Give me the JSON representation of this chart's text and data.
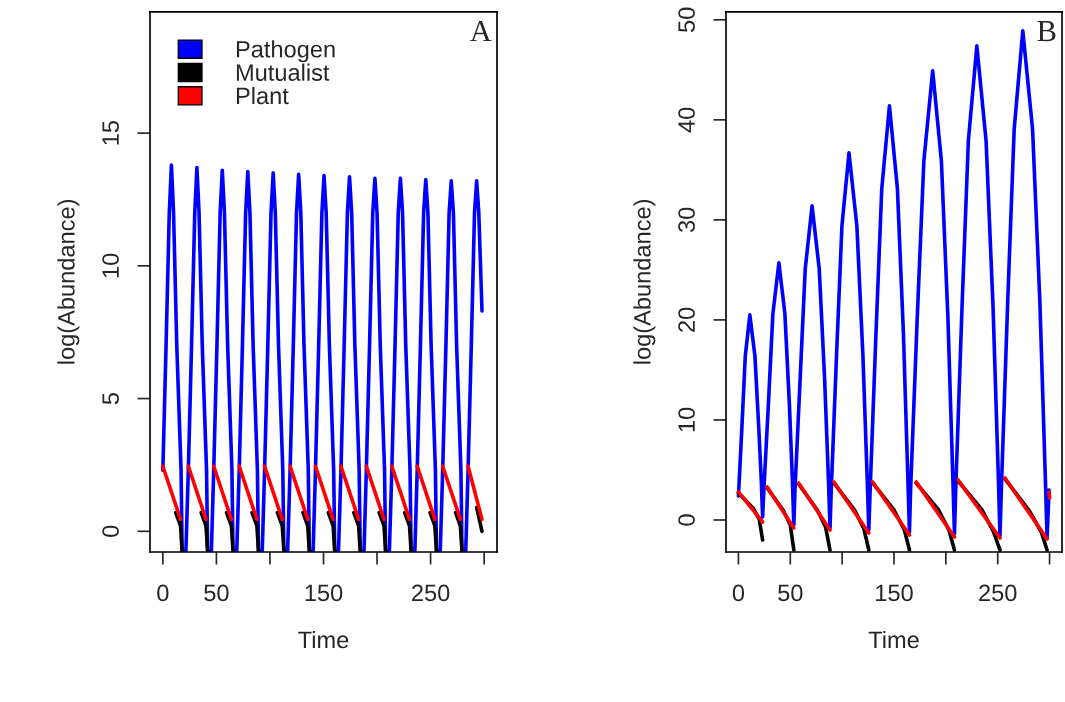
{
  "chart_data": [
    {
      "type": "line",
      "xlabel": "Time",
      "ylabel": "log(Abundance)",
      "annotations": [
        "A"
      ],
      "legend": "top left",
      "xlim": [
        -12,
        312
      ],
      "ylim": [
        -0.78,
        19.57
      ],
      "xticks": [
        0,
        50,
        {
          "value": 100,
          "label": null
        },
        150,
        {
          "value": 200,
          "label": null
        },
        250,
        {
          "value": 300,
          "label": null
        }
      ],
      "yticks": [
        0,
        5,
        10,
        15
      ],
      "series": [
        {
          "name": "Pathogen",
          "color": "#0000ff",
          "x": [
            0,
            3,
            6,
            8,
            10,
            13,
            17,
            18,
            21.5,
            23.8,
            26.8,
            29.8,
            31.8,
            33.8,
            36.8,
            40.8,
            41.8,
            45.3,
            47.5,
            50.5,
            53.5,
            55.5,
            57.5,
            60.5,
            64.5,
            65.5,
            69,
            71.3,
            74.3,
            77.3,
            79.3,
            81.3,
            84.3,
            88.3,
            89.3,
            92.8,
            95,
            98,
            101,
            103,
            105,
            108,
            112,
            113,
            116.5,
            118.8,
            121.8,
            124.8,
            126.8,
            128.8,
            131.8,
            135.8,
            136.8,
            140.3,
            142.5,
            145.5,
            148.5,
            150.5,
            152.5,
            155.5,
            159.5,
            160.5,
            164,
            166.3,
            169.3,
            172.3,
            174.3,
            176.3,
            179.3,
            183.3,
            184.3,
            187.8,
            190,
            193,
            196,
            198,
            200,
            203,
            207,
            208,
            211.5,
            213.8,
            216.8,
            219.8,
            221.8,
            223.8,
            226.8,
            230.8,
            231.8,
            235.3,
            237.5,
            240.5,
            243.5,
            245.5,
            247.5,
            250.5,
            254.5,
            255.5,
            259,
            261.3,
            264.3,
            267.3,
            269.3,
            271.3,
            274.3,
            278.3,
            279.3,
            282.8,
            285,
            288,
            291,
            293,
            295,
            298
          ],
          "values": [
            2.3,
            7,
            12,
            13.8,
            12,
            7,
            2.3,
            -0.75,
            -0.75,
            2.3,
            7,
            12,
            13.7,
            12,
            7,
            2.3,
            -0.75,
            -0.75,
            2.3,
            7,
            12,
            13.6,
            12,
            7,
            2.3,
            -0.75,
            -0.75,
            2.3,
            7,
            12,
            13.55,
            12,
            7,
            2.3,
            -0.75,
            -0.75,
            2.3,
            7,
            12,
            13.5,
            12,
            7,
            2.3,
            -0.75,
            -0.75,
            2.3,
            7,
            12,
            13.45,
            12,
            7,
            2.3,
            -0.75,
            -0.75,
            2.3,
            7,
            12,
            13.4,
            12,
            7,
            2.3,
            -0.75,
            -0.75,
            2.3,
            7,
            12,
            13.35,
            12,
            7,
            2.3,
            -0.75,
            -0.75,
            2.3,
            7,
            12,
            13.3,
            12,
            7,
            2.3,
            -0.75,
            -0.75,
            2.3,
            7,
            12,
            13.3,
            12,
            7,
            2.3,
            -0.75,
            -0.75,
            2.3,
            7,
            12,
            13.25,
            12,
            7,
            2.3,
            -0.75,
            -0.75,
            2.3,
            7,
            12,
            13.2,
            12,
            7,
            2.3,
            -0.75,
            -0.75,
            2.3,
            7,
            12,
            13.2,
            12,
            8.3
          ]
        },
        {
          "name": "Mutualist",
          "color": "#000000",
          "x": [
            12,
            16.5,
            18,
            20,
            35.8,
            40.3,
            41.8,
            43,
            59.5,
            64,
            65.5,
            67,
            83.3,
            87.8,
            89.3,
            91,
            107,
            111.5,
            113,
            115,
            130.8,
            135.3,
            136.8,
            138,
            154.5,
            159,
            160.5,
            162,
            178.3,
            182.8,
            184.3,
            186,
            202,
            206.5,
            208,
            210,
            225.8,
            230.3,
            231.8,
            233,
            249.5,
            254,
            255.5,
            257,
            273.3,
            277.8,
            279.3,
            281,
            293,
            298
          ],
          "values": [
            0.7,
            0.2,
            -0.75,
            null,
            0.7,
            0.2,
            -0.75,
            null,
            0.7,
            0.2,
            -0.75,
            null,
            0.7,
            0.2,
            -0.75,
            null,
            0.7,
            0.2,
            -0.75,
            null,
            0.7,
            0.2,
            -0.75,
            null,
            0.7,
            0.2,
            -0.75,
            null,
            0.7,
            0.2,
            -0.75,
            null,
            0.7,
            0.2,
            -0.75,
            null,
            0.7,
            0.2,
            -0.75,
            null,
            0.7,
            0.2,
            -0.75,
            null,
            0.7,
            0.2,
            -0.75,
            null,
            0.9,
            0.0
          ]
        },
        {
          "name": "Plant",
          "color": "#ff0000",
          "x": [
            0,
            16.5,
            20,
            23.8,
            40.3,
            43,
            47.5,
            64,
            67,
            71.3,
            87.8,
            91,
            95,
            111.5,
            115,
            118.8,
            135.3,
            138,
            142.5,
            159,
            162,
            166.3,
            182.8,
            186,
            190,
            206.5,
            210,
            213.8,
            230.3,
            233,
            237.5,
            254,
            257,
            261.3,
            277.8,
            281,
            285,
            298
          ],
          "values": [
            2.45,
            0.45,
            null,
            2.45,
            0.45,
            null,
            2.45,
            0.45,
            null,
            2.45,
            0.45,
            null,
            2.45,
            0.45,
            null,
            2.45,
            0.45,
            null,
            2.45,
            0.45,
            null,
            2.45,
            0.45,
            null,
            2.45,
            0.45,
            null,
            2.45,
            0.45,
            null,
            2.45,
            0.45,
            null,
            2.45,
            0.45,
            null,
            2.45,
            0.45
          ]
        }
      ]
    },
    {
      "type": "line",
      "xlabel": "Time",
      "ylabel": "log(Abundance)",
      "annotations": [
        "B"
      ],
      "xlim": [
        -12,
        312
      ],
      "ylim": [
        -3.2,
        50.8
      ],
      "xticks": [
        0,
        50,
        {
          "value": 100,
          "label": null
        },
        150,
        {
          "value": 200,
          "label": null
        },
        250,
        {
          "value": 300,
          "label": null
        }
      ],
      "yticks": [
        0,
        10,
        20,
        30,
        40,
        50
      ],
      "series": [
        {
          "color": "#0000ff",
          "x": [
            0,
            3.3,
            6.6,
            11,
            15.9,
            19.6,
            22,
            23.3,
            24.5,
            28.9,
            33.2,
            39,
            44.8,
            49.1,
            52,
            53.4,
            54.5,
            59.5,
            64.4,
            71,
            77.9,
            83.1,
            86.8,
            88.3,
            89.5,
            94.6,
            99.8,
            106.6,
            114.2,
            120,
            124.2,
            125.7,
            127,
            132.6,
            138.2,
            145.6,
            153.3,
            159.1,
            163.4,
            164.9,
            166,
            172.4,
            178.8,
            187.3,
            195.7,
            202,
            206.8,
            208.3,
            209.5,
            215.6,
            221.7,
            229.9,
            238.8,
            245.5,
            250.7,
            252.2,
            253.5,
            259.7,
            265.9,
            274.2,
            283.6,
            290.6,
            296,
            297.6,
            299.5
          ],
          "values": [
            2.4,
            9.2,
            16.4,
            20.5,
            16.4,
            9.2,
            4,
            0.3,
            3,
            11.6,
            20.6,
            25.7,
            20.6,
            11.6,
            4,
            -0.5,
            3,
            14.1,
            25.1,
            31.4,
            25.1,
            14.1,
            4,
            -0.8,
            3,
            16.5,
            29.4,
            36.7,
            29.4,
            16.5,
            4,
            -1.0,
            3,
            18.6,
            33.1,
            41.4,
            33.1,
            18.6,
            4,
            -1.2,
            3,
            20.2,
            35.9,
            44.9,
            35.9,
            20.2,
            4,
            -1.4,
            3,
            21.3,
            37.9,
            47.4,
            37.9,
            21.3,
            4,
            -1.6,
            3,
            22,
            39.1,
            48.9,
            39.1,
            22,
            4,
            -1.8,
            3
          ]
        },
        {
          "color": "#000000",
          "x": [
            0,
            14,
            20,
            23.3,
            25,
            27.7,
            43,
            50,
            53.4,
            55,
            58,
            76,
            84,
            88.3,
            90,
            92,
            112,
            121,
            125.7,
            127,
            129.4,
            150,
            160,
            164.9,
            167,
            171.4,
            193,
            203,
            208.3,
            210,
            211.8,
            235,
            246,
            252.2,
            254,
            257,
            280,
            292,
            297.6
          ],
          "values": [
            2.7,
            1.2,
            0.1,
            -2.0,
            null,
            3.2,
            1.0,
            -0.5,
            -3.0,
            null,
            3.6,
            1.0,
            -0.7,
            -3.0,
            null,
            3.7,
            1.0,
            -0.9,
            -3.0,
            null,
            3.7,
            1.0,
            -1.0,
            -3.0,
            null,
            3.7,
            1.0,
            -1.0,
            -3.0,
            null,
            3.9,
            1.0,
            -1.2,
            -3.0,
            null,
            4.1,
            1.0,
            -1.2,
            -3.0
          ]
        },
        {
          "color": "#ff0000",
          "x": [
            0,
            23.3,
            25,
            27.7,
            53.4,
            55,
            58,
            88.3,
            90,
            92,
            125.7,
            127,
            129.4,
            164.9,
            167,
            171.4,
            208.3,
            210,
            211.8,
            252.2,
            254,
            257,
            297.6,
            298.5,
            299.5,
            300
          ],
          "values": [
            2.8,
            -0.2,
            null,
            3.3,
            -0.8,
            null,
            3.7,
            -1.0,
            null,
            3.8,
            -1.3,
            null,
            3.8,
            -1.5,
            null,
            3.8,
            -1.7,
            null,
            4.0,
            -1.8,
            null,
            4.2,
            -1.9,
            null,
            2.8,
            2.2
          ]
        }
      ]
    }
  ]
}
